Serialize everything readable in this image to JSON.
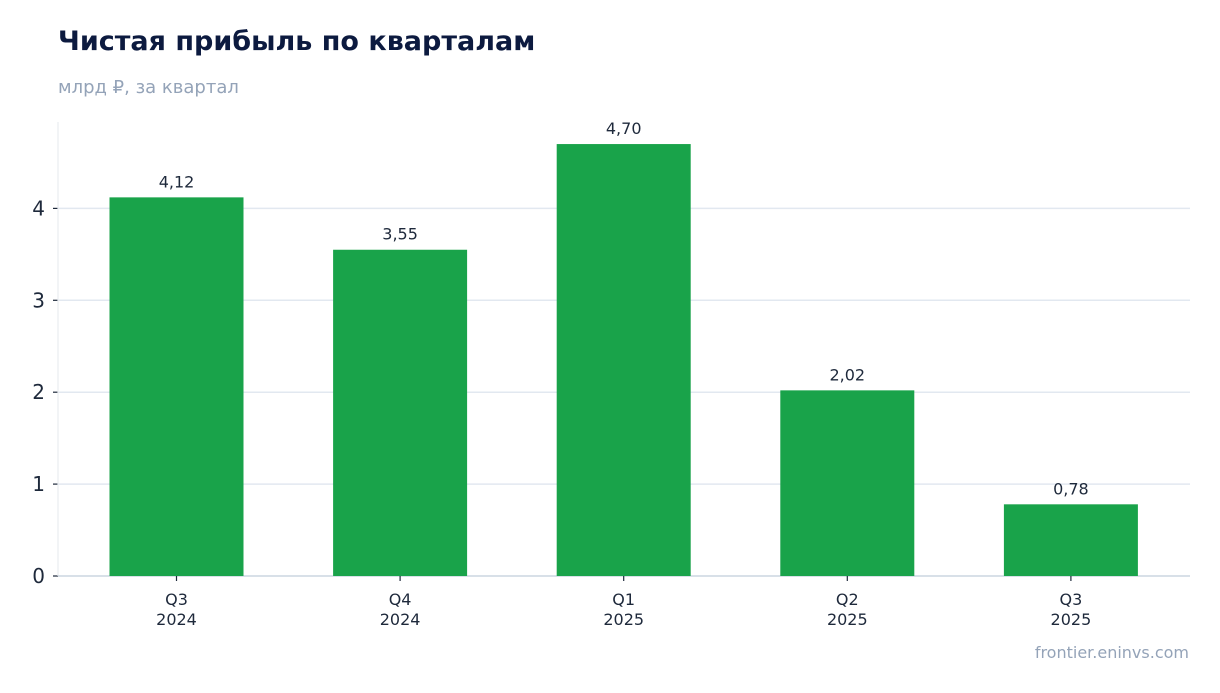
{
  "header": {
    "title": "Чистая прибыль по кварталам",
    "subtitle": "млрд ₽, за квартал"
  },
  "footer": {
    "source": "frontier.eninvs.com"
  },
  "colors": {
    "bar": "#19a34a",
    "grid": "#e2e8f0",
    "axis": "#cbd5e1",
    "text": "#1e293b",
    "title": "#0c1a3f",
    "muted": "#94a3b8"
  },
  "chart_data": {
    "type": "bar",
    "title": "Чистая прибыль по кварталам",
    "subtitle": "млрд ₽, за квартал",
    "categories": [
      [
        "Q3",
        "2024"
      ],
      [
        "Q4",
        "2024"
      ],
      [
        "Q1",
        "2025"
      ],
      [
        "Q2",
        "2025"
      ],
      [
        "Q3",
        "2025"
      ]
    ],
    "values": [
      4.12,
      3.55,
      4.7,
      2.02,
      0.78
    ],
    "value_labels": [
      "4,12",
      "3,55",
      "4,70",
      "2,02",
      "0,78"
    ],
    "yticks": [
      0,
      1,
      2,
      3,
      4
    ],
    "ylim": [
      0,
      4.94
    ],
    "xlabel": "",
    "ylabel": "",
    "grid": true,
    "legend": "none"
  }
}
